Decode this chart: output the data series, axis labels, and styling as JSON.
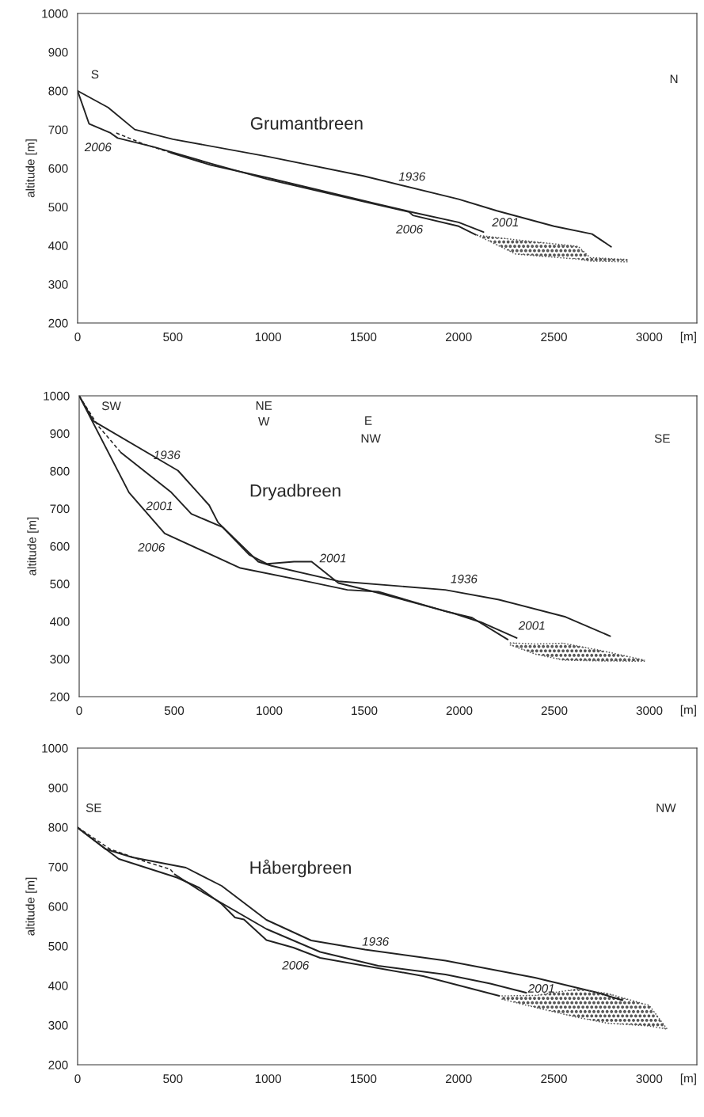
{
  "chart_data": [
    {
      "type": "line",
      "title": "Grumantbreen",
      "xlabel": "[m]",
      "ylabel": "altitude [m]",
      "xlim": [
        0,
        3250
      ],
      "ylim": [
        200,
        1000
      ],
      "xticks": [
        0,
        500,
        1000,
        1500,
        2000,
        2500,
        3000
      ],
      "yticks": [
        200,
        300,
        400,
        500,
        600,
        700,
        800,
        900,
        1000
      ],
      "series": [
        {
          "color": "#222222",
          "x": [
            0,
            160,
            300,
            500,
            1000,
            1500,
            2000,
            2200,
            2500,
            2700,
            2800
          ],
          "values": [
            800,
            757,
            700,
            675,
            630,
            580,
            520,
            490,
            450,
            430,
            397
          ]
        },
        {
          "color": "#222222",
          "line_style": "dashed",
          "x": [
            203,
            350,
            490
          ],
          "values": [
            691,
            662,
            640
          ]
        },
        {
          "color": "#222222",
          "x": [
            490,
            700,
            1000,
            1500,
            1750,
            2000,
            2130
          ],
          "values": [
            640,
            608,
            575,
            516,
            487,
            460,
            435
          ]
        },
        {
          "color": "#222222",
          "x": [
            0,
            60,
            170,
            210,
            400,
            700,
            1000,
            1500,
            1740,
            1760,
            2000,
            2090
          ],
          "values": [
            800,
            715,
            692,
            678,
            655,
            612,
            571,
            514,
            487,
            478,
            450,
            428
          ]
        },
        {
          "color": "#555555",
          "line_style": "dotted",
          "x": [
            2096,
            2300,
            2627,
            2690,
            2886
          ],
          "values": [
            427,
            415,
            398,
            369,
            364
          ]
        },
        {
          "color": "#555555",
          "line_style": "dotted",
          "x": [
            2096,
            2300,
            2627,
            2690,
            2886
          ],
          "values": [
            427,
            378,
            365,
            360,
            358
          ]
        }
      ],
      "annotations": [
        "S",
        "N",
        "2006",
        "1936",
        "2006",
        {
          "text": "2001",
          "x": 2130,
          "y": 435
        }
      ]
    },
    {
      "type": "line",
      "title": "Dryadbreen",
      "xlabel": "[m]",
      "ylabel": "altitude [m]",
      "xlim": [
        0,
        3250
      ],
      "ylim": [
        200,
        1000
      ],
      "xticks": [
        0,
        500,
        1000,
        1500,
        2000,
        2500,
        3000
      ],
      "yticks": [
        200,
        300,
        400,
        500,
        600,
        700,
        800,
        900,
        1000
      ],
      "series": [
        {
          "color": "#222222",
          "x": [
            0,
            75,
            520,
            684,
            731,
            895,
            942,
            1012,
            1364,
            1926,
            2208,
            2559,
            2794
          ],
          "values": [
            1000,
            933,
            801,
            709,
            663,
            582,
            559,
            548,
            507,
            484,
            458,
            412,
            361
          ]
        },
        {
          "color": "#222222",
          "line_style": "dashed",
          "x": [
            0,
            100,
            220
          ],
          "values": [
            1000,
            920,
            849
          ]
        },
        {
          "color": "#222222",
          "x": [
            220,
            485,
            590,
            754,
            895,
            989,
            1130,
            1223,
            1364,
            1551,
            1973,
            2114,
            2302
          ],
          "values": [
            849,
            743,
            686,
            651,
            577,
            553,
            559,
            559,
            502,
            479,
            421,
            398,
            356
          ]
        },
        {
          "color": "#222222",
          "x": [
            0,
            262,
            450,
            848,
            1223,
            1411,
            1575,
            1926,
            2067,
            2255
          ],
          "values": [
            1000,
            743,
            634,
            542,
            504,
            484,
            479,
            427,
            410,
            352
          ]
        },
        {
          "color": "#555555",
          "line_style": "dotted",
          "x": [
            2266,
            2400,
            2550,
            2750,
            2976
          ],
          "values": [
            343,
            340,
            342,
            322,
            297
          ]
        },
        {
          "color": "#555555",
          "line_style": "dotted",
          "x": [
            2266,
            2400,
            2550,
            2750,
            2976
          ],
          "values": [
            338,
            313,
            297,
            295,
            294
          ]
        }
      ],
      "annotations": [
        "SW",
        "NE",
        "W",
        "E",
        "NW",
        "SE",
        "1936",
        "2001",
        "2006",
        "2001",
        "1936",
        "2001"
      ]
    },
    {
      "type": "line",
      "title": "Håbergbreen",
      "xlabel": "[m]",
      "ylabel": "altitude [m]",
      "xlim": [
        0,
        3250
      ],
      "ylim": [
        200,
        1000
      ],
      "xticks": [
        0,
        500,
        1000,
        1500,
        2000,
        2500,
        3000
      ],
      "yticks": [
        200,
        300,
        400,
        500,
        600,
        700,
        800,
        900,
        1000
      ],
      "series": [
        {
          "color": "#222222",
          "x": [
            0,
            146,
            287,
            568,
            756,
            991,
            1226,
            1508,
            1931,
            2400,
            2729,
            2859
          ],
          "values": [
            799,
            745,
            724,
            698,
            652,
            566,
            514,
            491,
            463,
            420,
            382,
            363
          ]
        },
        {
          "color": "#222222",
          "line_style": "dashed",
          "x": [
            0,
            169,
            357,
            486,
            510
          ],
          "values": [
            800,
            745,
            713,
            694,
            681
          ]
        },
        {
          "color": "#222222",
          "x": [
            510,
            639,
            991,
            1273,
            1578,
            1931,
            2166,
            2354
          ],
          "values": [
            681,
            641,
            543,
            485,
            450,
            428,
            405,
            382
          ]
        },
        {
          "color": "#222222",
          "x": [
            0,
            216,
            521,
            639,
            756,
            826,
            873,
            991,
            1132,
            1273,
            1813,
            2213
          ],
          "values": [
            799,
            720,
            673,
            647,
            606,
            572,
            567,
            515,
            496,
            470,
            424,
            374
          ]
        },
        {
          "color": "#555555",
          "line_style": "dotted",
          "x": [
            2225,
            2400,
            2620,
            2780,
            3000,
            3094
          ],
          "values": [
            374,
            375,
            391,
            380,
            350,
            290
          ]
        },
        {
          "color": "#555555",
          "line_style": "dotted",
          "x": [
            2225,
            2400,
            2620,
            2780,
            3000,
            3094
          ],
          "values": [
            366,
            345,
            320,
            305,
            298,
            290
          ]
        }
      ],
      "annotations": [
        "SE",
        "NW",
        "1936",
        "2006",
        "2001"
      ]
    }
  ]
}
